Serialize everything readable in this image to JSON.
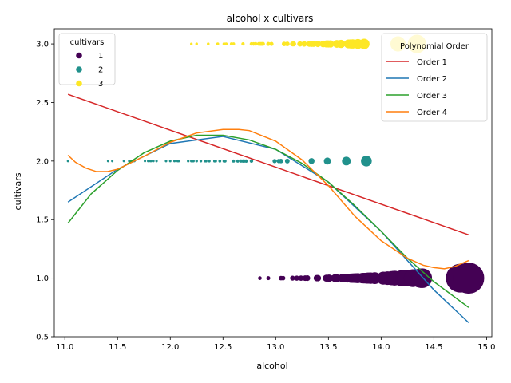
{
  "chart_data": {
    "type": "scatter",
    "title": "alcohol x cultivars",
    "xlabel": "alcohol",
    "ylabel": "cultivars",
    "xlim": [
      10.9,
      15.05
    ],
    "ylim": [
      0.5,
      3.13
    ],
    "xticks": [
      11.0,
      11.5,
      12.0,
      12.5,
      13.0,
      13.5,
      14.0,
      14.5,
      15.0
    ],
    "xtick_labels": [
      "11.0",
      "11.5",
      "12.0",
      "12.5",
      "13.0",
      "13.5",
      "14.0",
      "14.5",
      "15.0"
    ],
    "yticks": [
      0.5,
      1.0,
      1.5,
      2.0,
      2.5,
      3.0
    ],
    "ytick_labels": [
      "0.5",
      "1.0",
      "1.5",
      "2.0",
      "2.5",
      "3.0"
    ],
    "grid": false,
    "legend_scatter": {
      "title": "cultivars",
      "position": "top-left",
      "entries": [
        {
          "label": "1",
          "color": "#440154"
        },
        {
          "label": "2",
          "color": "#21918c"
        },
        {
          "label": "3",
          "color": "#fde725"
        }
      ]
    },
    "legend_lines": {
      "title": "Polynomial Order",
      "position": "top-right",
      "entries": [
        {
          "label": "Order 1",
          "color": "#d62728"
        },
        {
          "label": "Order 2",
          "color": "#1f77b4"
        },
        {
          "label": "Order 3",
          "color": "#2ca02c"
        },
        {
          "label": "Order 4",
          "color": "#ff7f0e"
        }
      ]
    },
    "size_note": "marker size grows with alcohol",
    "series": [
      {
        "cultivar": 1,
        "color": "#440154",
        "y": 1,
        "x": [
          12.85,
          12.93,
          13.05,
          13.07,
          13.16,
          13.2,
          13.24,
          13.28,
          13.3,
          13.39,
          13.4,
          13.48,
          13.5,
          13.51,
          13.56,
          13.58,
          13.63,
          13.64,
          13.68,
          13.71,
          13.72,
          13.73,
          13.74,
          13.75,
          13.76,
          13.77,
          13.78,
          13.82,
          13.83,
          13.84,
          13.86,
          13.87,
          13.88,
          13.9,
          13.94,
          14.02,
          14.06,
          14.1,
          14.12,
          14.13,
          14.19,
          14.21,
          14.22,
          14.23,
          14.3,
          14.37,
          14.38,
          14.39,
          14.75,
          14.83
        ]
      },
      {
        "cultivar": 2,
        "color": "#21918c",
        "y": 2,
        "x": [
          11.03,
          11.41,
          11.45,
          11.56,
          11.61,
          11.62,
          11.64,
          11.65,
          11.66,
          11.76,
          11.79,
          11.81,
          11.82,
          11.84,
          11.87,
          11.96,
          12.0,
          12.04,
          12.07,
          12.08,
          12.17,
          12.2,
          12.21,
          12.22,
          12.25,
          12.29,
          12.33,
          12.34,
          12.37,
          12.42,
          12.43,
          12.47,
          12.51,
          12.52,
          12.6,
          12.64,
          12.67,
          12.69,
          12.7,
          12.72,
          12.77,
          12.99,
          13.03,
          13.05,
          13.11,
          13.34,
          13.49,
          13.67,
          13.86
        ]
      },
      {
        "cultivar": 3,
        "color": "#fde725",
        "y": 3,
        "x": [
          12.2,
          12.25,
          12.36,
          12.45,
          12.51,
          12.53,
          12.58,
          12.6,
          12.69,
          12.77,
          12.79,
          12.81,
          12.84,
          12.85,
          12.86,
          12.87,
          12.88,
          12.93,
          12.96,
          13.08,
          13.11,
          13.16,
          13.17,
          13.23,
          13.27,
          13.32,
          13.34,
          13.36,
          13.4,
          13.45,
          13.48,
          13.49,
          13.5,
          13.52,
          13.58,
          13.62,
          13.69,
          13.71,
          13.73,
          13.78,
          13.84,
          14.16,
          14.34
        ]
      }
    ],
    "fits": [
      {
        "name": "Order 1",
        "color": "#d62728",
        "x": [
          11.03,
          14.83
        ],
        "y": [
          2.57,
          1.37
        ]
      },
      {
        "name": "Order 2",
        "color": "#1f77b4",
        "x": [
          11.03,
          11.5,
          12.0,
          12.5,
          13.0,
          13.5,
          14.0,
          14.5,
          14.83
        ],
        "y": [
          1.65,
          1.93,
          2.15,
          2.21,
          2.1,
          1.82,
          1.4,
          0.9,
          0.62
        ]
      },
      {
        "name": "Order 3",
        "color": "#2ca02c",
        "x": [
          11.03,
          11.25,
          11.5,
          11.75,
          12.0,
          12.25,
          12.5,
          12.75,
          13.0,
          13.25,
          13.5,
          13.75,
          14.0,
          14.25,
          14.5,
          14.83
        ],
        "y": [
          1.47,
          1.72,
          1.92,
          2.07,
          2.17,
          2.22,
          2.22,
          2.18,
          2.1,
          1.98,
          1.82,
          1.62,
          1.4,
          1.17,
          0.97,
          0.75
        ]
      },
      {
        "name": "Order 4",
        "color": "#ff7f0e",
        "x": [
          11.03,
          11.1,
          11.2,
          11.3,
          11.4,
          11.5,
          11.75,
          12.0,
          12.25,
          12.5,
          12.65,
          12.75,
          13.0,
          13.25,
          13.5,
          13.75,
          14.0,
          14.25,
          14.4,
          14.5,
          14.6,
          14.7,
          14.83
        ],
        "y": [
          2.05,
          1.99,
          1.94,
          1.91,
          1.91,
          1.93,
          2.04,
          2.16,
          2.24,
          2.27,
          2.27,
          2.26,
          2.17,
          2.01,
          1.79,
          1.53,
          1.32,
          1.17,
          1.11,
          1.09,
          1.08,
          1.1,
          1.15
        ]
      }
    ]
  }
}
